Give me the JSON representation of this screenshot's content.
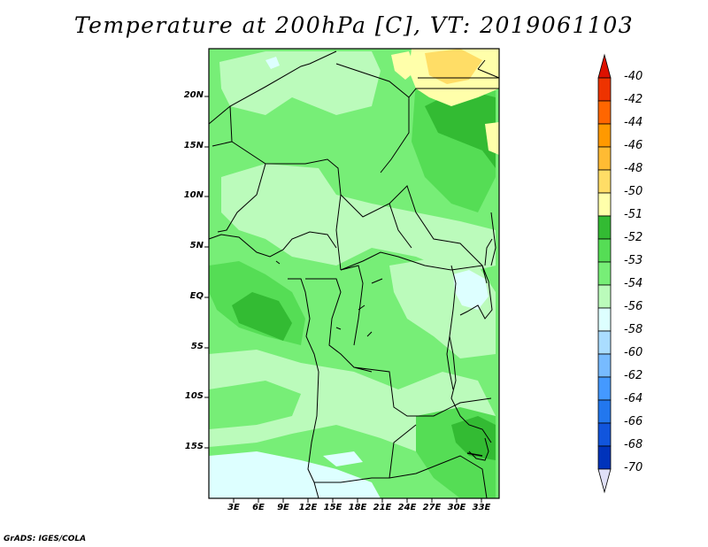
{
  "title": "Temperature at 200hPa [C], VT: 2019061103",
  "credit": "GrADS: IGES/COLA",
  "lat_labels": [
    "20N",
    "15N",
    "10N",
    "5N",
    "EQ",
    "5S",
    "10S",
    "15S"
  ],
  "lon_labels": [
    "3E",
    "6E",
    "9E",
    "12E",
    "15E",
    "18E",
    "21E",
    "24E",
    "27E",
    "30E",
    "33E"
  ],
  "colorbar": {
    "labels": [
      "-40",
      "-42",
      "-44",
      "-46",
      "-48",
      "-50",
      "-51",
      "-52",
      "-53",
      "-54",
      "-56",
      "-58",
      "-60",
      "-62",
      "-64",
      "-66",
      "-68",
      "-70"
    ],
    "colors": [
      "#dd1100",
      "#ee3300",
      "#ff6600",
      "#ff9900",
      "#ffbb33",
      "#ffdd66",
      "#ffffaa",
      "#33bb33",
      "#55dd55",
      "#77ee77",
      "#bbfbbb",
      "#ddffff",
      "#aaddff",
      "#77bbff",
      "#4499ff",
      "#2277ee",
      "#1155dd",
      "#0033bb",
      "#001188"
    ]
  },
  "palette": {
    "cold_cyan": "#ddffff",
    "light_green": "#bbfbbb",
    "mid_green": "#77ee77",
    "green": "#55dd55",
    "dark_green": "#33bb33",
    "pale_yellow": "#ffffaa",
    "yellow": "#ffdd66"
  }
}
